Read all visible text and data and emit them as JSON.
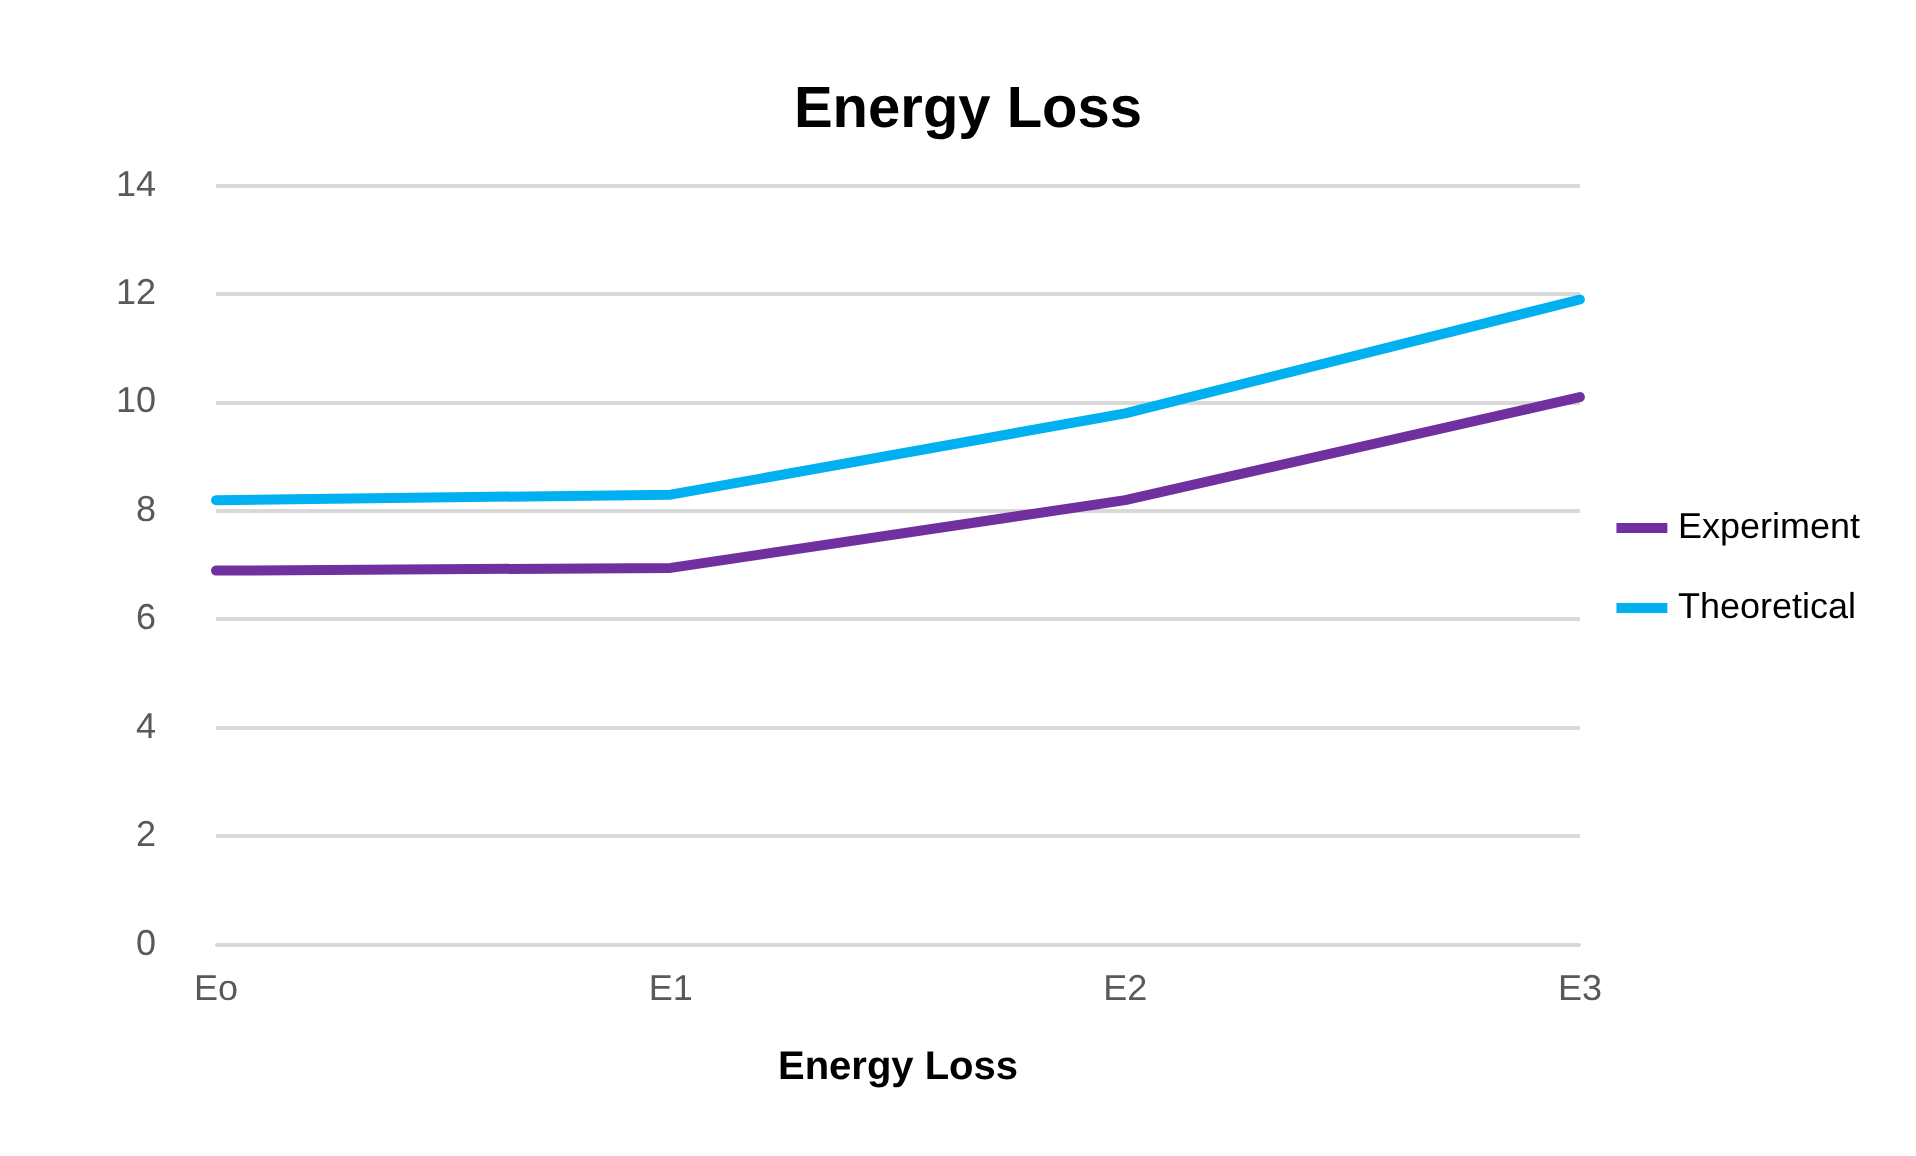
{
  "chart_data": {
    "type": "line",
    "title": "Energy Loss",
    "xlabel": "Energy Loss",
    "categories": [
      "Eo",
      "E1",
      "E2",
      "E3"
    ],
    "series": [
      {
        "name": "Experiment",
        "color": "#7030a0",
        "values": [
          6.9,
          6.95,
          8.2,
          10.1
        ]
      },
      {
        "name": "Theoretical",
        "color": "#00b0f0",
        "values": [
          8.2,
          8.3,
          9.8,
          11.9
        ]
      }
    ],
    "ylim": [
      0,
      14
    ],
    "yticks": [
      0,
      2,
      4,
      6,
      8,
      10,
      12,
      14
    ],
    "grid": "y",
    "legend": "right",
    "marker": "none",
    "line_style": "solid"
  }
}
